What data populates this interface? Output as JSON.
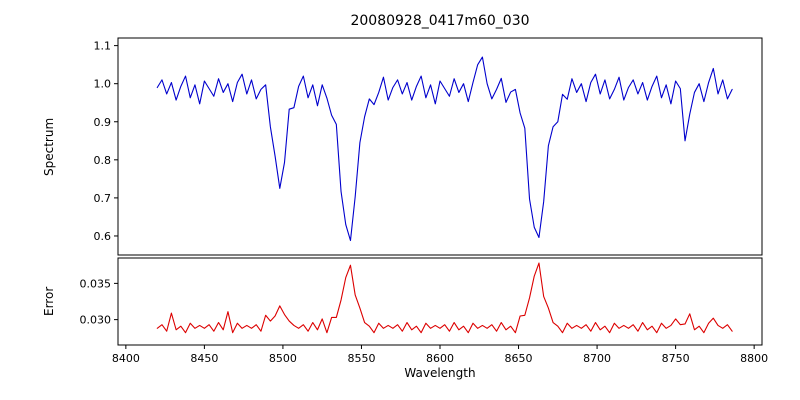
{
  "chart_data": {
    "type": "line",
    "title": "20080928_0417m60_030",
    "xlabel": "Wavelength",
    "xlim": [
      8395,
      8805
    ],
    "xticks": [
      8400,
      8450,
      8500,
      8550,
      8600,
      8650,
      8700,
      8750,
      8800
    ],
    "xtick_labels": [
      "8400",
      "8450",
      "8500",
      "8550",
      "8600",
      "8650",
      "8700",
      "8750",
      "8800"
    ],
    "x_start": 8420,
    "x_step": 3,
    "notable_absorption_lines_x": [
      8498,
      8542,
      8662
    ],
    "axis_color": "#000000",
    "background": "#ffffff",
    "panels": [
      {
        "name": "spectrum",
        "ylabel": "Spectrum",
        "color": "#0000cd",
        "ylim": [
          0.55,
          1.12
        ],
        "yticks": [
          0.6,
          0.7,
          0.8,
          0.9,
          1.0,
          1.1
        ],
        "ytick_labels": [
          "0.6",
          "0.7",
          "0.8",
          "0.9",
          "1.0",
          "1.1"
        ],
        "values": [
          0.99,
          1.01,
          0.973,
          1.003,
          0.957,
          0.993,
          1.02,
          0.963,
          0.997,
          0.947,
          1.007,
          0.987,
          0.967,
          1.013,
          0.977,
          1.0,
          0.953,
          1.003,
          1.025,
          0.973,
          1.01,
          0.96,
          0.985,
          0.997,
          0.887,
          0.81,
          0.725,
          0.793,
          0.933,
          0.937,
          0.993,
          1.02,
          0.963,
          0.997,
          0.942,
          0.997,
          0.962,
          0.917,
          0.893,
          0.717,
          0.63,
          0.588,
          0.703,
          0.845,
          0.913,
          0.96,
          0.945,
          0.977,
          1.017,
          0.957,
          0.99,
          1.01,
          0.973,
          1.003,
          0.957,
          0.993,
          1.02,
          0.963,
          0.997,
          0.947,
          1.007,
          0.987,
          0.967,
          1.013,
          0.977,
          1.0,
          0.953,
          1.003,
          1.05,
          1.07,
          1.0,
          0.96,
          0.985,
          1.014,
          0.951,
          0.978,
          0.985,
          0.923,
          0.883,
          0.697,
          0.623,
          0.596,
          0.69,
          0.837,
          0.887,
          0.9,
          0.972,
          0.959,
          1.013,
          0.977,
          1.0,
          0.953,
          1.003,
          1.025,
          0.973,
          1.01,
          0.96,
          0.985,
          1.017,
          0.957,
          0.99,
          1.01,
          0.973,
          1.003,
          0.957,
          0.993,
          1.02,
          0.963,
          0.997,
          0.947,
          1.007,
          0.987,
          0.85,
          0.92,
          0.977,
          1.0,
          0.953,
          1.003,
          1.04,
          0.973,
          1.01,
          0.96,
          0.985
        ]
      },
      {
        "name": "error",
        "ylabel": "Error",
        "color": "#dc0000",
        "ylim": [
          0.0265,
          0.0385
        ],
        "yticks": [
          0.03,
          0.035
        ],
        "ytick_labels": [
          "0.030",
          "0.035"
        ],
        "values": [
          0.0288,
          0.0293,
          0.0284,
          0.0309,
          0.0286,
          0.0291,
          0.0282,
          0.0295,
          0.0288,
          0.0292,
          0.0288,
          0.0293,
          0.0284,
          0.0296,
          0.0286,
          0.0311,
          0.0282,
          0.0295,
          0.0288,
          0.0292,
          0.0288,
          0.0293,
          0.0284,
          0.0306,
          0.0298,
          0.0305,
          0.0319,
          0.0307,
          0.0298,
          0.0292,
          0.0288,
          0.0293,
          0.0284,
          0.0296,
          0.0286,
          0.0301,
          0.0282,
          0.0303,
          0.0303,
          0.0327,
          0.0358,
          0.0375,
          0.0334,
          0.0316,
          0.0296,
          0.0291,
          0.0282,
          0.0295,
          0.0288,
          0.0292,
          0.0288,
          0.0293,
          0.0284,
          0.0296,
          0.0286,
          0.0291,
          0.0282,
          0.0295,
          0.0288,
          0.0292,
          0.0288,
          0.0293,
          0.0284,
          0.0296,
          0.0286,
          0.0291,
          0.0282,
          0.0295,
          0.0288,
          0.0292,
          0.0288,
          0.0293,
          0.0284,
          0.0296,
          0.0286,
          0.0291,
          0.0282,
          0.0305,
          0.0306,
          0.033,
          0.036,
          0.0378,
          0.0332,
          0.0316,
          0.0296,
          0.0291,
          0.0282,
          0.0295,
          0.0288,
          0.0292,
          0.0288,
          0.0293,
          0.0284,
          0.0296,
          0.0286,
          0.0291,
          0.0282,
          0.0295,
          0.0288,
          0.0292,
          0.0288,
          0.0293,
          0.0284,
          0.0296,
          0.0286,
          0.0291,
          0.0282,
          0.0295,
          0.0288,
          0.0292,
          0.0301,
          0.0293,
          0.0294,
          0.0308,
          0.0286,
          0.0291,
          0.0282,
          0.0295,
          0.0302,
          0.0292,
          0.0288,
          0.0293,
          0.0284
        ]
      }
    ]
  }
}
